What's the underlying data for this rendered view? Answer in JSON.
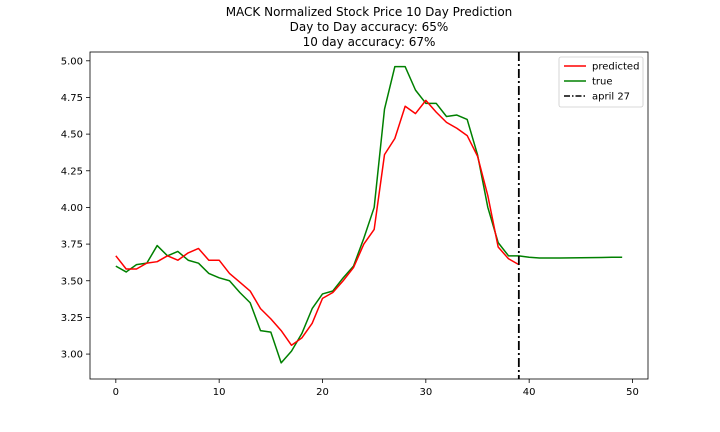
{
  "chart_data": {
    "type": "line",
    "title_lines": [
      "MACK Normalized Stock Price 10 Day Prediction",
      "Day to Day accuracy: 65%",
      "10 day accuracy: 67%"
    ],
    "xlabel": "",
    "ylabel": "",
    "xlim": [
      -2.5,
      51.5
    ],
    "ylim": [
      2.83,
      5.06
    ],
    "x_ticks": [
      0,
      10,
      20,
      30,
      40,
      50
    ],
    "x_tick_labels": [
      "0",
      "10",
      "20",
      "30",
      "40",
      "50"
    ],
    "y_ticks": [
      3.0,
      3.25,
      3.5,
      3.75,
      4.0,
      4.25,
      4.5,
      4.75,
      5.0
    ],
    "y_tick_labels": [
      "3.00",
      "3.25",
      "3.50",
      "3.75",
      "4.00",
      "4.25",
      "4.50",
      "4.75",
      "5.00"
    ],
    "grid": false,
    "legend_position": "top-right",
    "series": [
      {
        "name": "predicted",
        "color": "#ff0000",
        "x": [
          0,
          1,
          2,
          3,
          4,
          5,
          6,
          7,
          8,
          9,
          10,
          11,
          12,
          13,
          14,
          15,
          16,
          17,
          18,
          19,
          20,
          21,
          22,
          23,
          24,
          25,
          26,
          27,
          28,
          29,
          30,
          31,
          32,
          33,
          34,
          35,
          36,
          37,
          38,
          39
        ],
        "values": [
          3.67,
          3.58,
          3.58,
          3.62,
          3.63,
          3.67,
          3.64,
          3.69,
          3.72,
          3.64,
          3.64,
          3.55,
          3.49,
          3.43,
          3.31,
          3.24,
          3.16,
          3.06,
          3.11,
          3.21,
          3.38,
          3.42,
          3.5,
          3.59,
          3.75,
          3.85,
          4.36,
          4.47,
          4.69,
          4.64,
          4.73,
          4.65,
          4.58,
          4.54,
          4.49,
          4.35,
          4.08,
          3.73,
          3.65,
          3.61
        ]
      },
      {
        "name": "true",
        "color": "#008000",
        "x": [
          0,
          1,
          2,
          3,
          4,
          5,
          6,
          7,
          8,
          9,
          10,
          11,
          12,
          13,
          14,
          15,
          16,
          17,
          18,
          19,
          20,
          21,
          22,
          23,
          24,
          25,
          26,
          27,
          28,
          29,
          30,
          31,
          32,
          33,
          34,
          35,
          36,
          37,
          38,
          39,
          40,
          41,
          42,
          43,
          44,
          45,
          46,
          47,
          48,
          49
        ],
        "values": [
          3.6,
          3.56,
          3.61,
          3.62,
          3.74,
          3.67,
          3.7,
          3.64,
          3.62,
          3.55,
          3.52,
          3.5,
          3.42,
          3.35,
          3.16,
          3.15,
          2.94,
          3.02,
          3.14,
          3.31,
          3.41,
          3.43,
          3.52,
          3.6,
          3.79,
          4.0,
          4.67,
          4.96,
          4.96,
          4.8,
          4.71,
          4.71,
          4.62,
          4.63,
          4.6,
          4.36,
          4.0,
          3.76,
          3.67,
          3.67,
          3.66,
          3.655,
          3.655,
          3.655,
          3.656,
          3.657,
          3.658,
          3.659,
          3.66,
          3.66
        ]
      }
    ],
    "vlines": [
      {
        "name": "april 27",
        "x": 39,
        "color": "#000000",
        "style": "dashdot"
      }
    ]
  }
}
